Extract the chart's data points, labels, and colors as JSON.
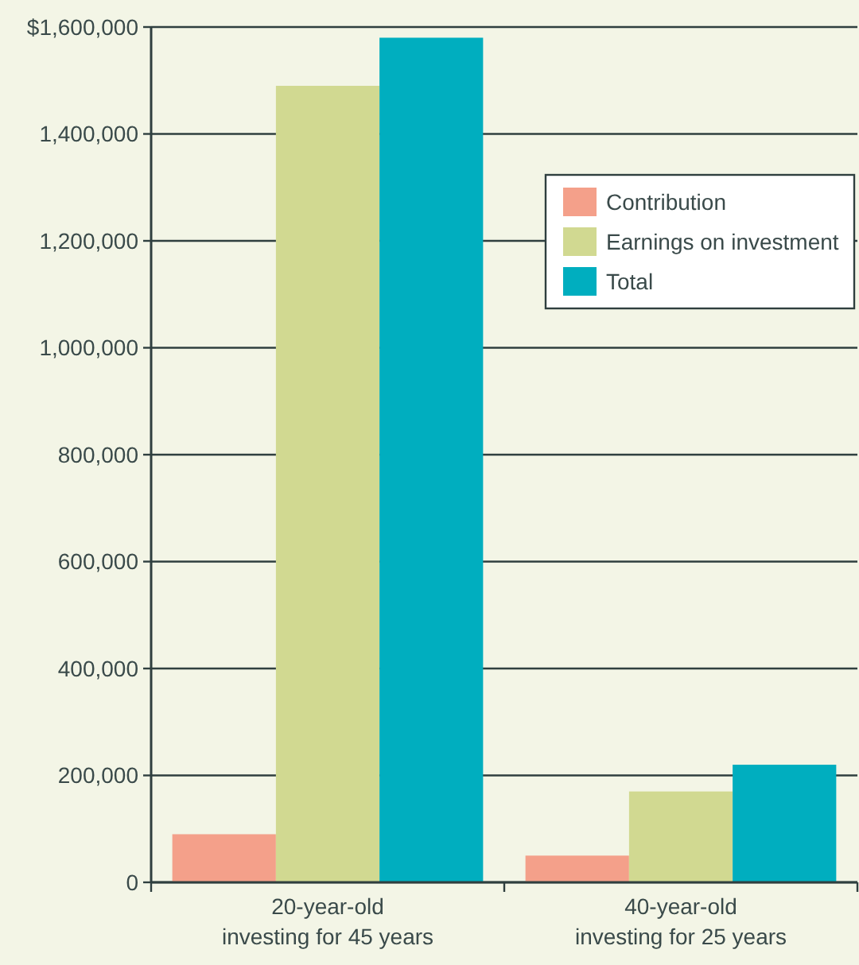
{
  "chart_data": {
    "type": "bar",
    "categories": [
      "20-year-old\ninvesting for 45 years",
      "40-year-old\ninvesting for 25 years"
    ],
    "series": [
      {
        "name": "Contribution",
        "color": "#f4a08a",
        "values": [
          90000,
          50000
        ]
      },
      {
        "name": "Earnings on investment",
        "color": "#d1d991",
        "values": [
          1490000,
          170000
        ]
      },
      {
        "name": "Total",
        "color": "#00aebf",
        "values": [
          1580000,
          220000
        ]
      }
    ],
    "ylim": [
      0,
      1600000
    ],
    "yticks": [
      0,
      {
        "value": 200000,
        "label": "200,000"
      },
      {
        "value": 400000,
        "label": "400,000"
      },
      {
        "value": 600000,
        "label": "600,000"
      },
      {
        "value": 800000,
        "label": "800,000"
      },
      {
        "value": 1000000,
        "label": "1,000,000"
      },
      {
        "value": 1200000,
        "label": "1,200,000"
      },
      {
        "value": 1400000,
        "label": "1,400,000"
      },
      {
        "value": 1600000,
        "label": "$1,600,000"
      }
    ],
    "grid": "y",
    "legend": "top right"
  }
}
